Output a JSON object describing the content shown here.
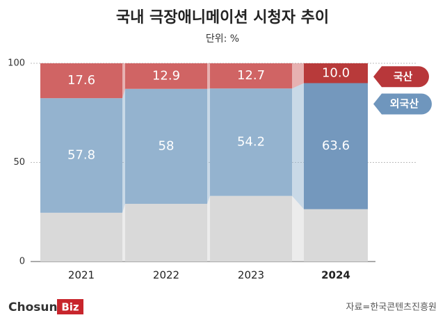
{
  "chart_data": {
    "type": "stacked-bar",
    "title": "국내 극장애니메이션 시청자 추이",
    "subtitle": "단위: %",
    "categories": [
      "2021",
      "2022",
      "2023",
      "2024"
    ],
    "series": [
      {
        "colors": [
          "#d9d9d9",
          "#d9d9d9",
          "#d9d9d9",
          "#d9d9d9"
        ],
        "values": [
          24.6,
          29.1,
          33.1,
          26.4
        ]
      },
      {
        "name": "외국산",
        "color": "#6f96bd",
        "colors": [
          "#94b3cf",
          "#94b3cf",
          "#94b3cf",
          "#7498bd"
        ],
        "values": [
          57.8,
          58.0,
          54.2,
          63.6
        ]
      },
      {
        "name": "국산",
        "color": "#b8373a",
        "colors": [
          "#d06464",
          "#d06464",
          "#d06464",
          "#b83a3a"
        ],
        "values": [
          17.6,
          12.9,
          12.7,
          10.0
        ]
      }
    ],
    "value_labels": [
      null,
      null,
      [
        "17.6",
        "12.9",
        "12.7",
        "10.0"
      ]
    ],
    "ylim": [
      0,
      100
    ],
    "yticks": [
      0,
      50,
      100
    ],
    "grid": true,
    "source": "자료=한국콘텐츠진흥원",
    "logo": [
      "Chosun",
      "Biz"
    ]
  }
}
